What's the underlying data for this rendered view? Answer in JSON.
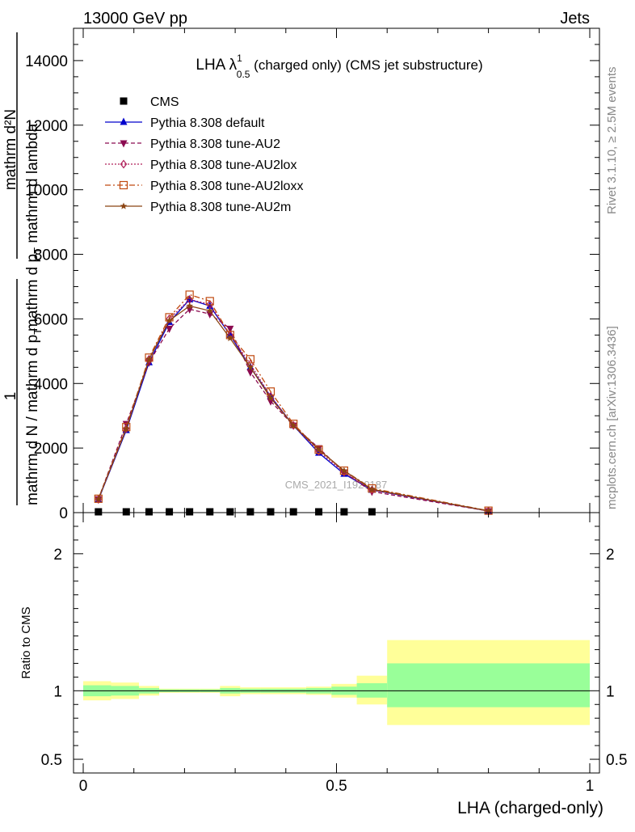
{
  "header": {
    "left": "13000 GeV pp",
    "right": "Jets"
  },
  "title": {
    "prefix": "LHA ",
    "lambda": "λ",
    "sup": "1",
    "sub": "0.5",
    "suffix": " (charged only) (CMS jet substructure)"
  },
  "side_text": {
    "rivet": "Rivet 3.1.10, ≥ 2.5M events",
    "mcplots": "mcplots.cern.ch [arXiv:1306.3436]"
  },
  "watermark": "CMS_2021_I1920187",
  "ylabel_main": {
    "one": "1",
    "denominator": "mathrm d N / mathrm d p",
    "denominator_sub": "T",
    "numerator": "mathrm d²N",
    "denominator2": "mathrm d p",
    "denominator2_sub": "T",
    "denominator2_rest": " mathrm d lambda"
  },
  "ylabel_ratio": "Ratio to CMS",
  "xlabel": "LHA (charged-only)",
  "chart_data": [
    {
      "type": "line",
      "panel": "main",
      "xlim": [
        -0.02,
        1.02
      ],
      "ylim": [
        0,
        15000
      ],
      "yticks": [
        0,
        2000,
        4000,
        6000,
        8000,
        10000,
        12000,
        14000
      ],
      "ytick_labels": [
        "0",
        "2000",
        "4000",
        "6000",
        "8000",
        "10000",
        "12000",
        "14000"
      ],
      "xticks": [
        0,
        0.5,
        1
      ],
      "legend_position": "top-left",
      "x": [
        0.03,
        0.085,
        0.13,
        0.17,
        0.21,
        0.25,
        0.29,
        0.33,
        0.37,
        0.415,
        0.465,
        0.515,
        0.57,
        0.8
      ],
      "series": [
        {
          "name": "CMS",
          "color": "#000000",
          "marker": "square",
          "dash": "none",
          "x": [
            0.03,
            0.085,
            0.13,
            0.17,
            0.21,
            0.25,
            0.29,
            0.33,
            0.37,
            0.415,
            0.465,
            0.515,
            0.57
          ],
          "values": [
            20,
            20,
            20,
            20,
            20,
            20,
            20,
            20,
            20,
            20,
            20,
            20,
            20
          ]
        },
        {
          "name": "Pythia 8.308 default",
          "color": "#0000cc",
          "marker": "triangle-up",
          "dash": "solid",
          "values": [
            400,
            2550,
            4650,
            5900,
            6600,
            6400,
            5500,
            4500,
            3600,
            2700,
            1850,
            1200,
            700,
            50
          ]
        },
        {
          "name": "Pythia 8.308 tune-AU2",
          "color": "#8b0a50",
          "marker": "triangle-down",
          "dash": "dashed",
          "values": [
            420,
            2750,
            4650,
            5700,
            6300,
            6150,
            5700,
            4350,
            3450,
            2700,
            2000,
            1250,
            650,
            50
          ]
        },
        {
          "name": "Pythia 8.308 tune-AU2lox",
          "color": "#b0205a",
          "marker": "diamond-open",
          "dash": "dotted",
          "values": [
            410,
            2600,
            4750,
            6000,
            6600,
            6450,
            5500,
            4600,
            3600,
            2700,
            1900,
            1250,
            700,
            50
          ]
        },
        {
          "name": "Pythia 8.308 tune-AU2loxx",
          "color": "#c04a10",
          "marker": "square-open",
          "dash": "dashdot",
          "values": [
            430,
            2650,
            4800,
            6050,
            6750,
            6550,
            5500,
            4750,
            3750,
            2750,
            1950,
            1300,
            750,
            60
          ]
        },
        {
          "name": "Pythia 8.308 tune-AU2m",
          "color": "#8b4513",
          "marker": "star",
          "dash": "solid",
          "values": [
            420,
            2600,
            4750,
            5950,
            6400,
            6250,
            5400,
            4500,
            3550,
            2700,
            1950,
            1300,
            720,
            55
          ]
        }
      ]
    },
    {
      "type": "area",
      "panel": "ratio",
      "ylim": [
        0.4,
        2.3
      ],
      "yticks": [
        0.5,
        1,
        2
      ],
      "ytick_labels": [
        "0.5",
        "1",
        "2"
      ],
      "xticks": [
        0,
        0.5,
        1
      ],
      "xtick_labels": [
        "0",
        "0.5",
        "1"
      ],
      "reference": 1,
      "bins": [
        {
          "lo": 0.0,
          "hi": 0.055,
          "band1": [
            0.96,
            1.04
          ],
          "band2": [
            0.93,
            1.07
          ]
        },
        {
          "lo": 0.055,
          "hi": 0.11,
          "band1": [
            0.965,
            1.035
          ],
          "band2": [
            0.94,
            1.06
          ]
        },
        {
          "lo": 0.11,
          "hi": 0.15,
          "band1": [
            0.98,
            1.02
          ],
          "band2": [
            0.965,
            1.035
          ]
        },
        {
          "lo": 0.15,
          "hi": 0.19,
          "band1": [
            0.99,
            1.01
          ],
          "band2": [
            0.985,
            1.015
          ]
        },
        {
          "lo": 0.19,
          "hi": 0.23,
          "band1": [
            0.99,
            1.01
          ],
          "band2": [
            0.985,
            1.015
          ]
        },
        {
          "lo": 0.23,
          "hi": 0.27,
          "band1": [
            0.99,
            1.01
          ],
          "band2": [
            0.985,
            1.015
          ]
        },
        {
          "lo": 0.27,
          "hi": 0.31,
          "band1": [
            0.98,
            1.02
          ],
          "band2": [
            0.96,
            1.035
          ]
        },
        {
          "lo": 0.31,
          "hi": 0.35,
          "band1": [
            0.985,
            1.015
          ],
          "band2": [
            0.975,
            1.025
          ]
        },
        {
          "lo": 0.35,
          "hi": 0.39,
          "band1": [
            0.985,
            1.015
          ],
          "band2": [
            0.975,
            1.025
          ]
        },
        {
          "lo": 0.39,
          "hi": 0.44,
          "band1": [
            0.985,
            1.015
          ],
          "band2": [
            0.975,
            1.025
          ]
        },
        {
          "lo": 0.44,
          "hi": 0.49,
          "band1": [
            0.98,
            1.02
          ],
          "band2": [
            0.97,
            1.03
          ]
        },
        {
          "lo": 0.49,
          "hi": 0.54,
          "band1": [
            0.97,
            1.03
          ],
          "band2": [
            0.95,
            1.05
          ]
        },
        {
          "lo": 0.54,
          "hi": 0.6,
          "band1": [
            0.95,
            1.055
          ],
          "band2": [
            0.9,
            1.11
          ]
        },
        {
          "lo": 0.6,
          "hi": 1.0,
          "band1": [
            0.88,
            1.2
          ],
          "band2": [
            0.75,
            1.37
          ]
        }
      ],
      "band1_color": "#99ff99",
      "band2_color": "#ffff99"
    }
  ]
}
